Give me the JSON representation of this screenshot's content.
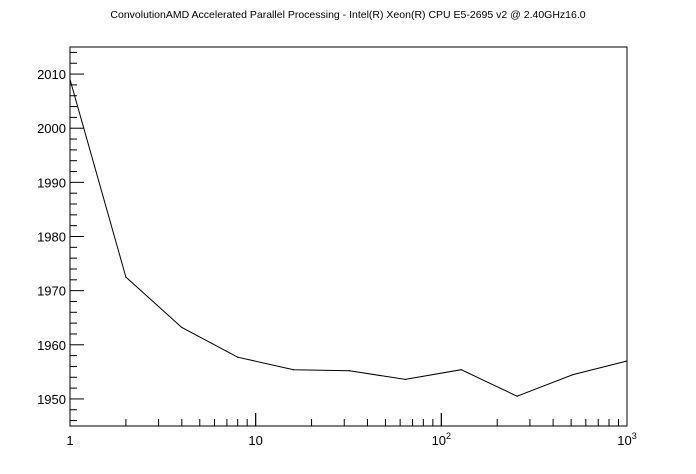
{
  "chart_data": {
    "type": "line",
    "title": "ConvolutionAMD Accelerated Parallel Processing - Intel(R) Xeon(R) CPU E5-2695 v2 @ 2.40GHz16.0",
    "xlabel": "",
    "ylabel": "",
    "x_scale": "log",
    "xlim": [
      1,
      1000
    ],
    "ylim": [
      1945,
      2015
    ],
    "grid": false,
    "x_tick_labels": [
      {
        "value": 1,
        "base": "1",
        "exp": ""
      },
      {
        "value": 10,
        "base": "10",
        "exp": ""
      },
      {
        "value": 100,
        "base": "10",
        "exp": "2"
      },
      {
        "value": 1000,
        "base": "10",
        "exp": "3"
      }
    ],
    "y_ticks": [
      1950,
      1960,
      1970,
      1980,
      1990,
      2000,
      2010
    ],
    "series": [
      {
        "color": "#000000",
        "x": [
          1,
          2,
          4,
          8,
          16,
          32,
          64,
          128,
          256,
          512,
          1000
        ],
        "y": [
          2009,
          1972.5,
          1963.2,
          1957.7,
          1955.4,
          1955.2,
          1953.6,
          1955.4,
          1950.5,
          1954.5,
          1957
        ]
      }
    ]
  }
}
